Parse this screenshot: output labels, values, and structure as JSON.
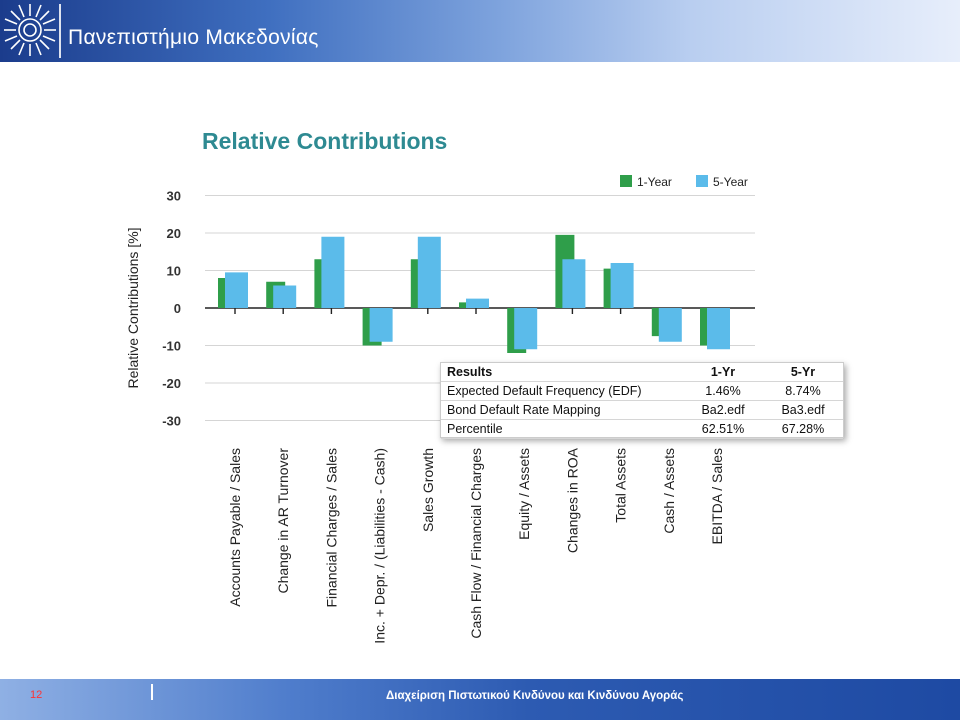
{
  "header": {
    "university": "Πανεπιστήμιο Μακεδονίας"
  },
  "footer": {
    "page_number": "12",
    "course": "Διαχείριση Πιστωτικού Κινδύνου και Κινδύνου Αγοράς"
  },
  "colors": {
    "series_1yr": "#2f9e4a",
    "series_5yr": "#5bbbea",
    "title": "#2e8a92"
  },
  "results_table": {
    "headers": [
      "Results",
      "1-Yr",
      "5-Yr"
    ],
    "rows": [
      [
        "Expected Default Frequency (EDF)",
        "1.46%",
        "8.74%"
      ],
      [
        "Bond Default Rate Mapping",
        "Ba2.edf",
        "Ba3.edf"
      ],
      [
        "Percentile",
        "62.51%",
        "67.28%"
      ]
    ]
  },
  "chart_data": {
    "type": "bar",
    "title": "Relative Contributions",
    "ylabel": "Relative Contributions [%]",
    "xlabel": "",
    "ylim": [
      -30,
      30
    ],
    "yticks": [
      30,
      20,
      10,
      0,
      -10,
      -20,
      -30
    ],
    "grid": true,
    "legend_position": "top-right",
    "categories": [
      "Accounts Payable / Sales",
      "Change in AR Turnover",
      "Financial Charges / Sales",
      "Inc. + Depr. / (Liabilities - Cash)",
      "Sales Growth",
      "Cash Flow / Financial Charges",
      "Equity / Assets",
      "Changes in ROA",
      "Total Assets",
      "Cash / Assets",
      "EBITDA / Sales"
    ],
    "series": [
      {
        "name": "1-Year",
        "values": [
          8,
          7,
          13,
          -10,
          13,
          1.5,
          -12,
          19.5,
          10.5,
          -7.5,
          -10
        ]
      },
      {
        "name": "5-Year",
        "values": [
          9.5,
          6,
          19,
          -9,
          19,
          2.5,
          -11,
          13,
          12,
          -9,
          -11
        ]
      }
    ]
  }
}
